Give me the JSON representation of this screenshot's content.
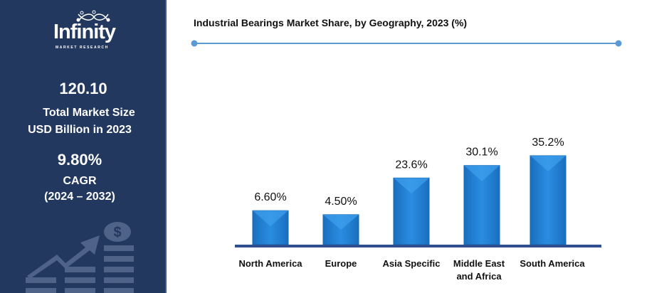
{
  "sidebar": {
    "logo_text": "Infinity",
    "logo_sub": "MARKET RESEARCH",
    "market_size": "120.10",
    "market_size_label_1": "Total Market Size",
    "market_size_label_2": "USD Billion in 2023",
    "cagr": "9.80%",
    "cagr_label": "CAGR",
    "cagr_period": "(2024 – 2032)",
    "icon": "money-growth-icon"
  },
  "colors": {
    "sidebar_bg": "#22385f",
    "bar": "#1f7fd0",
    "accent_line": "#5b9bd5",
    "axis": "#2f4f8f"
  },
  "chart_data": {
    "type": "bar",
    "title": "Industrial Bearings Market Share, by Geography, 2023 (%)",
    "categories": [
      "North America",
      "Europe",
      "Asia Specific",
      "Middle East and Africa",
      "South America"
    ],
    "category_lines": [
      [
        "North America"
      ],
      [
        "Europe"
      ],
      [
        "Asia Specific"
      ],
      [
        "Middle East",
        "and Africa"
      ],
      [
        "South America"
      ]
    ],
    "values": [
      6.6,
      4.5,
      23.6,
      30.1,
      35.2
    ],
    "data_labels": [
      "6.60%",
      "4.50%",
      "23.6%",
      "30.1%",
      "35.2%"
    ],
    "grid": false,
    "legend": "none"
  }
}
